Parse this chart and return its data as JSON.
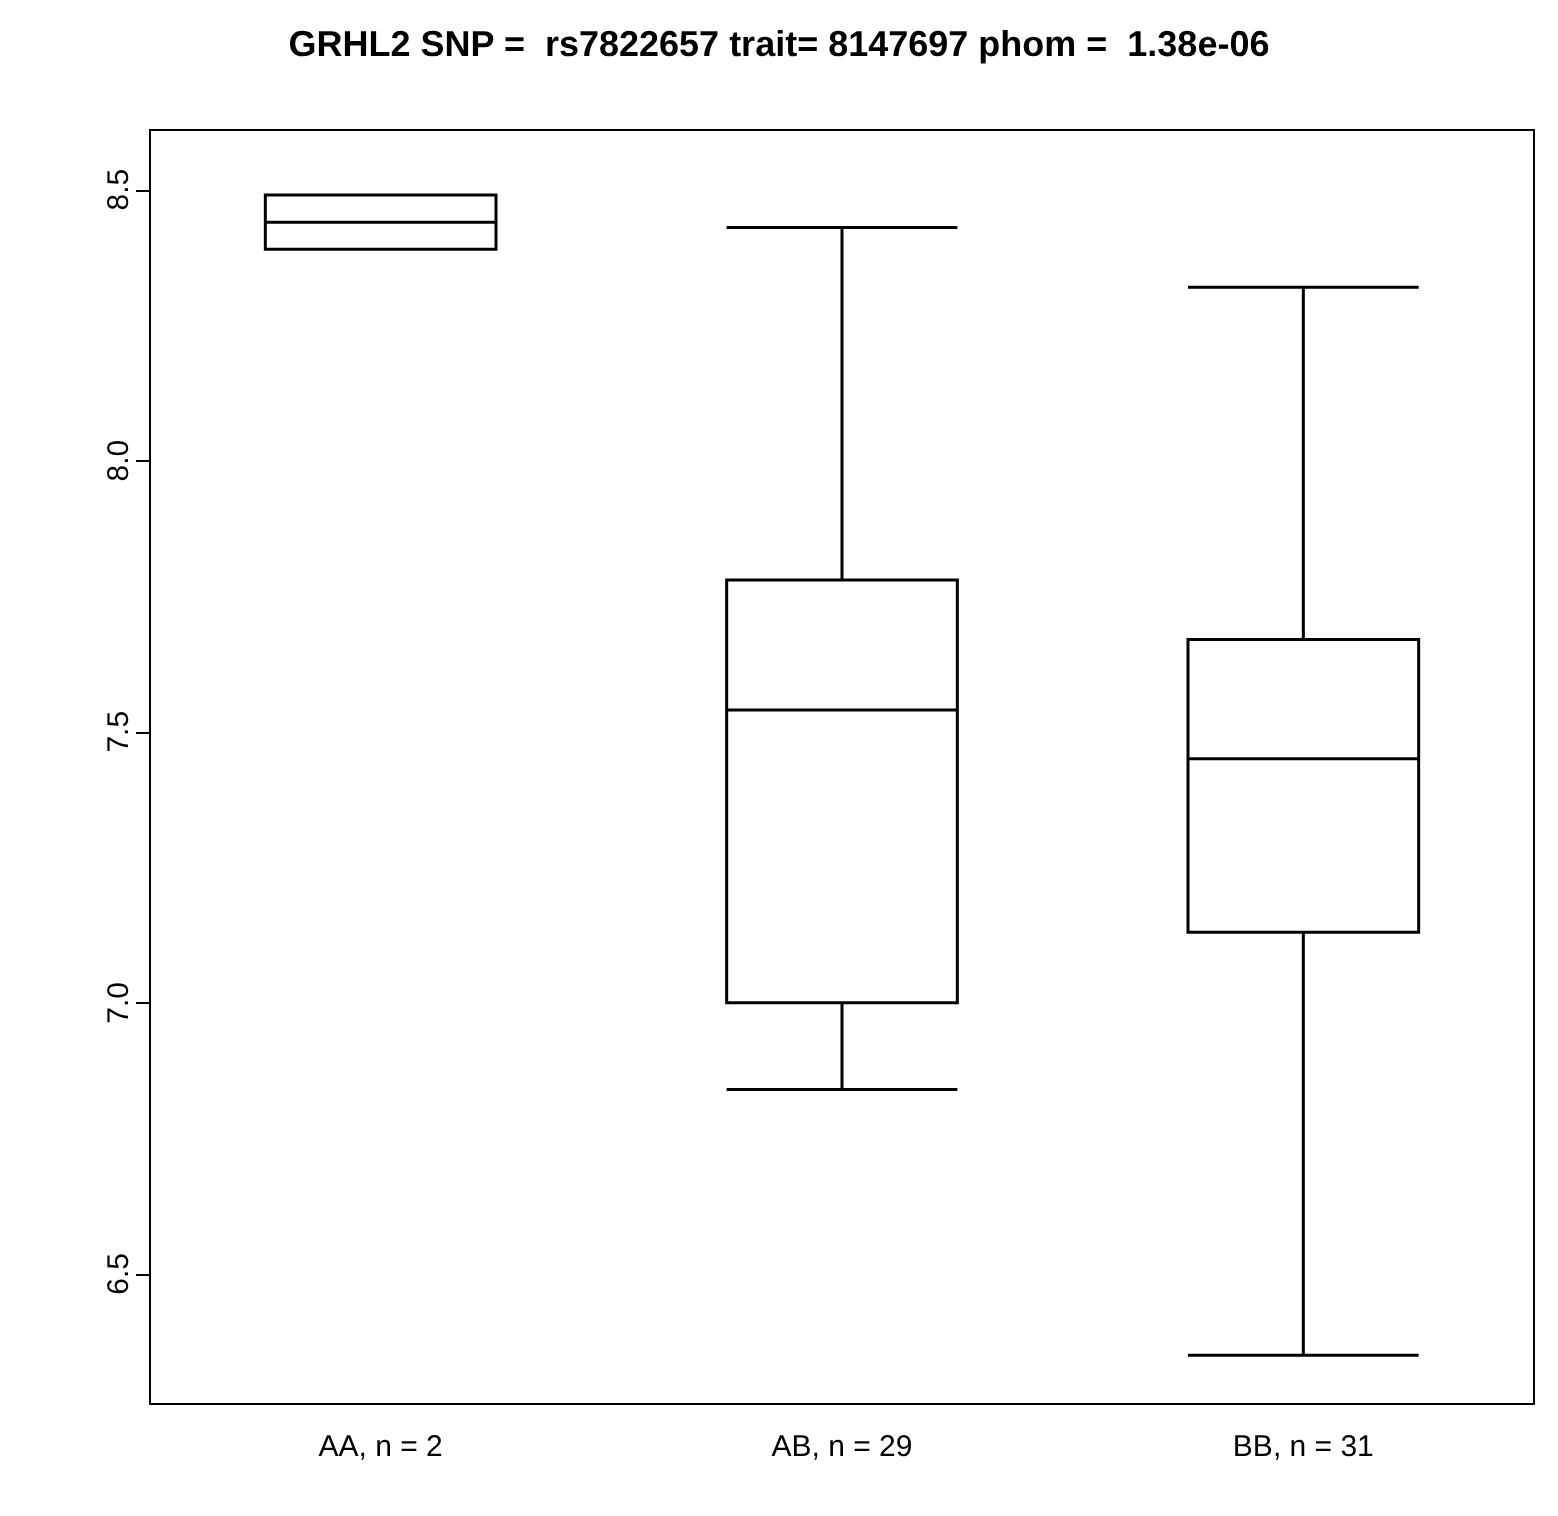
{
  "chart_data": {
    "type": "box",
    "title": "GRHL2 SNP =  rs7822657 trait= 8147697 phom =  1.38e-06",
    "categories": [
      "AA, n = 2",
      "AB, n = 29",
      "BB, n = 31"
    ],
    "boxes": [
      {
        "low": 8.39,
        "q1": 8.39,
        "median": 8.44,
        "q3": 8.49,
        "high": 8.49
      },
      {
        "low": 6.84,
        "q1": 7.0,
        "median": 7.54,
        "q3": 7.78,
        "high": 8.43
      },
      {
        "low": 6.35,
        "q1": 7.13,
        "median": 7.45,
        "q3": 7.67,
        "high": 8.32
      }
    ],
    "color": "#000000",
    "ylim": [
      6.26,
      8.61
    ],
    "yticks": [
      6.5,
      {
        "value": 7,
        "label": "7.0"
      },
      7.5,
      {
        "value": 8,
        "label": "8.0"
      },
      8.5
    ],
    "grid": false
  }
}
